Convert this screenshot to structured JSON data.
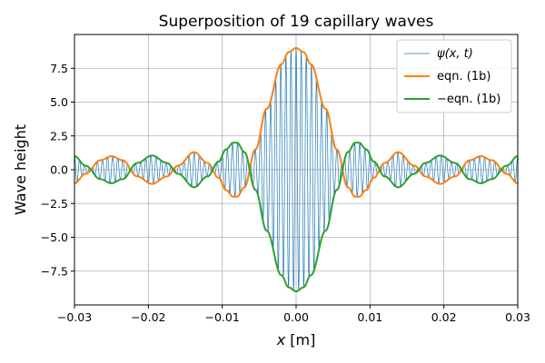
{
  "chart_data": {
    "type": "line",
    "title": "Superposition of 19 capillary waves",
    "xlabel_var": "x",
    "xlabel_unit": " [m]",
    "ylabel": "Wave height",
    "xlim": [
      -0.03,
      0.03
    ],
    "ylim": [
      -10,
      10
    ],
    "grid": true,
    "legend_position": "top-right",
    "x_ticks": [
      -0.03,
      -0.02,
      -0.01,
      0.0,
      0.01,
      0.02,
      0.03
    ],
    "x_tick_labels": [
      "−0.03",
      "−0.02",
      "−0.01",
      "0.00",
      "0.01",
      "0.02",
      "0.03"
    ],
    "y_ticks": [
      -7.5,
      -5.0,
      -2.5,
      0.0,
      2.5,
      5.0,
      7.5
    ],
    "y_tick_labels": [
      "−7.5",
      "−5.0",
      "−2.5",
      "0.0",
      "2.5",
      "5.0",
      "7.5"
    ],
    "envelope": {
      "x": [
        -0.03,
        -0.0285,
        -0.0265,
        -0.025,
        -0.0235,
        -0.0215,
        -0.0195,
        -0.0175,
        -0.016,
        -0.0138,
        -0.012,
        -0.0105,
        -0.0095,
        -0.0085,
        -0.008,
        -0.007,
        -0.0055,
        -0.004,
        -0.002,
        -0.001,
        0.0,
        0.001,
        0.002,
        0.004,
        0.0055,
        0.007,
        0.008,
        0.0085,
        0.0095,
        0.0105,
        0.012,
        0.0138,
        0.016,
        0.0175,
        0.0195,
        0.0215,
        0.0235,
        0.025,
        0.0265,
        0.0285,
        0.03
      ],
      "y": [
        -1.0,
        -0.3,
        0.7,
        1.0,
        0.7,
        -0.5,
        -1.05,
        -0.5,
        0.3,
        1.3,
        0.5,
        -0.6,
        -1.5,
        -2.0,
        -2.0,
        -1.3,
        1.5,
        4.5,
        7.8,
        8.7,
        9.0,
        8.7,
        7.8,
        4.5,
        1.5,
        -1.3,
        -2.0,
        -2.0,
        -1.5,
        -0.6,
        0.5,
        1.3,
        0.3,
        -0.5,
        -1.05,
        -0.5,
        0.7,
        1.0,
        0.7,
        -0.3,
        -1.0
      ]
    },
    "wave_cycles_per_m": 1450,
    "series": [
      {
        "name": "ψ(x, t)",
        "color": "#1f77b4",
        "kind": "oscillation"
      },
      {
        "name": "eqn. (1b)",
        "color": "#ff7f0e",
        "kind": "envelope"
      },
      {
        "name": "−eqn. (1b)",
        "color": "#2ca02c",
        "kind": "negative-envelope"
      }
    ]
  }
}
